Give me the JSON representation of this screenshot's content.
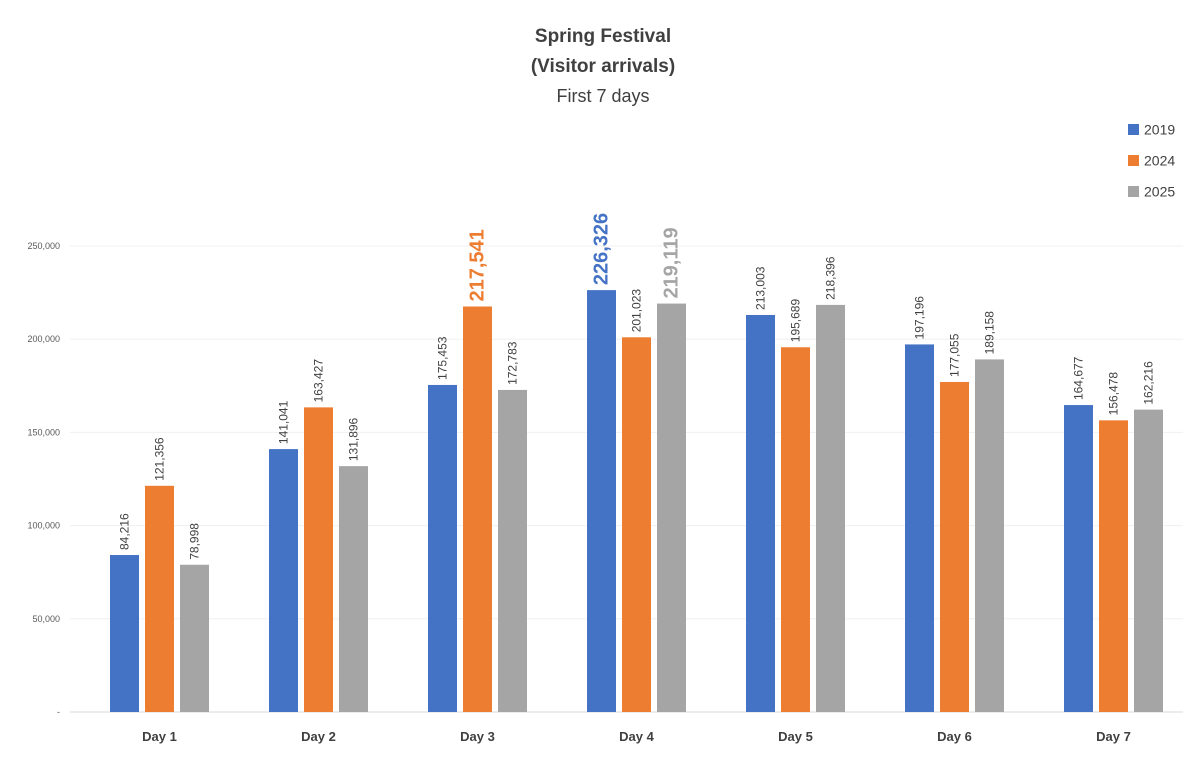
{
  "chart_data": {
    "type": "bar",
    "title": "Spring Festival",
    "title_line2": "(Visitor arrivals)",
    "subtitle": "First 7 days",
    "categories": [
      "Day 1",
      "Day 2",
      "Day 3",
      "Day 4",
      "Day 5",
      "Day 6",
      "Day 7"
    ],
    "series": [
      {
        "name": "2019",
        "color": "#4472C4",
        "values": [
          84216,
          141041,
          175453,
          226326,
          213003,
          197196,
          164677
        ]
      },
      {
        "name": "2024",
        "color": "#ED7D31",
        "values": [
          121356,
          163427,
          217541,
          201023,
          195689,
          177055,
          156478
        ]
      },
      {
        "name": "2025",
        "color": "#A5A5A5",
        "values": [
          78998,
          131896,
          172783,
          219119,
          218396,
          189158,
          162216
        ]
      }
    ],
    "data_labels": [
      [
        "84,216",
        "121,356",
        "78,998"
      ],
      [
        "141,041",
        "163,427",
        "131,896"
      ],
      [
        "175,453",
        "217,541",
        "172,783"
      ],
      [
        "226,326",
        "201,023",
        "219,119"
      ],
      [
        "213,003",
        "195,689",
        "218,396"
      ],
      [
        "197,196",
        "177,055",
        "189,158"
      ],
      [
        "164,677",
        "156,478",
        "162,216"
      ]
    ],
    "highlighted_labels": [
      {
        "category": "Day 3",
        "series": "2024"
      },
      {
        "category": "Day 4",
        "series": "2019"
      },
      {
        "category": "Day 4",
        "series": "2025"
      }
    ],
    "y_ticks": [
      0,
      50000,
      100000,
      150000,
      200000,
      250000
    ],
    "y_tick_labels": [
      "-",
      "50,000",
      "100,000",
      "150,000",
      "200,000",
      "250,000"
    ],
    "ylim": [
      0,
      250000
    ],
    "xlabel": "",
    "ylabel": "",
    "grid": true,
    "legend_position": "top-right"
  }
}
